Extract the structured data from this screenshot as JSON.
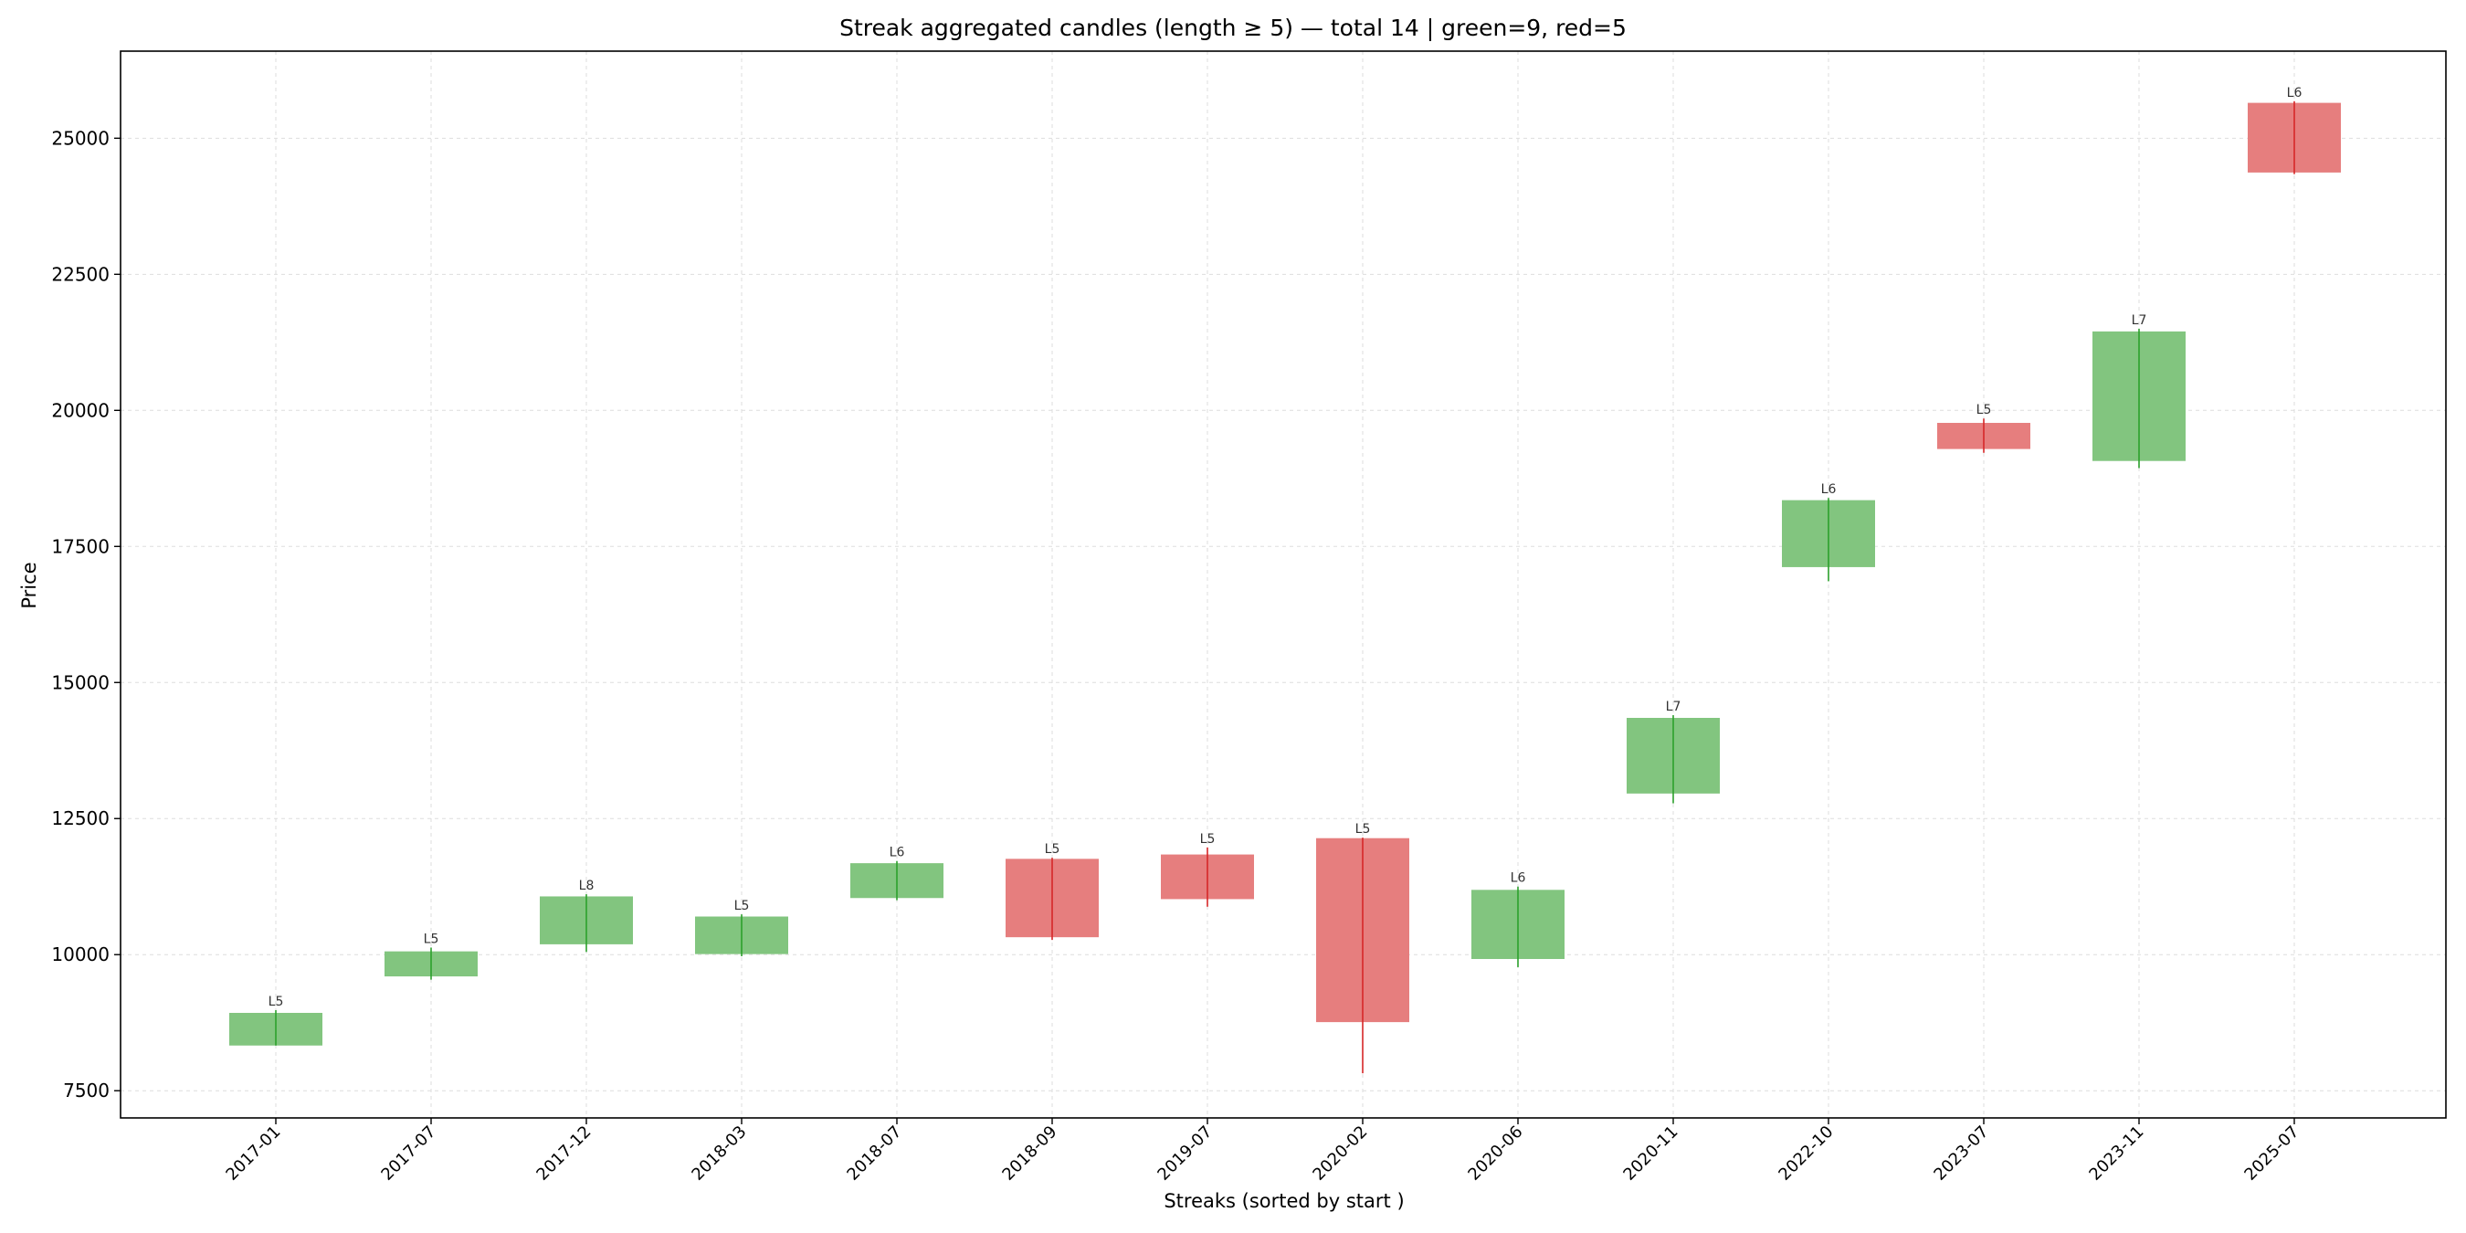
{
  "chart_data": {
    "type": "candlestick",
    "title": "Streak aggregated candles (length ≥ 5) — total 14 | green=9, red=5",
    "xlabel": "Streaks (sorted by start )",
    "ylabel": "Price",
    "ylim": [
      7000,
      26600
    ],
    "yticks": [
      7500,
      10000,
      12500,
      15000,
      17500,
      20000,
      22500,
      25000
    ],
    "grid": true,
    "colors": {
      "up": "#82c57f",
      "up_wick": "#2ca02c",
      "down": "#e67e7e",
      "down_wick": "#d62728"
    },
    "candles": [
      {
        "date": "2017-01",
        "label": "L5",
        "color": "green",
        "open": 8330,
        "close": 8930,
        "high": 8980,
        "low": 8330
      },
      {
        "date": "2017-07",
        "label": "L5",
        "color": "green",
        "open": 9600,
        "close": 10060,
        "high": 10130,
        "low": 9540
      },
      {
        "date": "2017-12",
        "label": "L8",
        "color": "green",
        "open": 10190,
        "close": 11070,
        "high": 11110,
        "low": 10050
      },
      {
        "date": "2018-03",
        "label": "L5",
        "color": "green",
        "open": 10010,
        "close": 10700,
        "high": 10740,
        "low": 9970
      },
      {
        "date": "2018-07",
        "label": "L6",
        "color": "green",
        "open": 11040,
        "close": 11680,
        "high": 11720,
        "low": 11000
      },
      {
        "date": "2018-09",
        "label": "L5",
        "color": "red",
        "open": 11760,
        "close": 10320,
        "high": 11780,
        "low": 10270
      },
      {
        "date": "2019-07",
        "label": "L5",
        "color": "red",
        "open": 11840,
        "close": 11020,
        "high": 11970,
        "low": 10880
      },
      {
        "date": "2020-02",
        "label": "L5",
        "color": "red",
        "open": 12140,
        "close": 8760,
        "high": 12150,
        "low": 7820
      },
      {
        "date": "2020-06",
        "label": "L6",
        "color": "green",
        "open": 9920,
        "close": 11190,
        "high": 11250,
        "low": 9770
      },
      {
        "date": "2020-11",
        "label": "L7",
        "color": "green",
        "open": 12960,
        "close": 14350,
        "high": 14400,
        "low": 12780
      },
      {
        "date": "2022-10",
        "label": "L6",
        "color": "green",
        "open": 17120,
        "close": 18350,
        "high": 18390,
        "low": 16860
      },
      {
        "date": "2023-07",
        "label": "L5",
        "color": "red",
        "open": 19770,
        "close": 19290,
        "high": 19850,
        "low": 19220
      },
      {
        "date": "2023-11",
        "label": "L7",
        "color": "green",
        "open": 19070,
        "close": 21450,
        "high": 21500,
        "low": 18940
      },
      {
        "date": "2025-07",
        "label": "L6",
        "color": "red",
        "open": 25650,
        "close": 24370,
        "high": 25680,
        "low": 24340
      }
    ]
  }
}
